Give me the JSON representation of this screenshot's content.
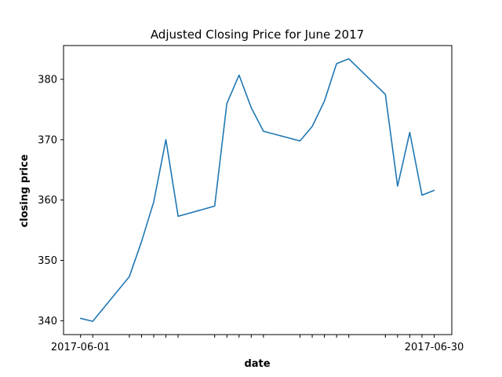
{
  "chart_data": {
    "type": "line",
    "title": "Adjusted Closing Price for June 2017",
    "xlabel": "date",
    "ylabel": "closing price",
    "x": [
      "2017-06-01",
      "2017-06-02",
      "2017-06-05",
      "2017-06-06",
      "2017-06-07",
      "2017-06-08",
      "2017-06-09",
      "2017-06-12",
      "2017-06-13",
      "2017-06-14",
      "2017-06-15",
      "2017-06-16",
      "2017-06-19",
      "2017-06-20",
      "2017-06-21",
      "2017-06-22",
      "2017-06-23",
      "2017-06-26",
      "2017-06-27",
      "2017-06-28",
      "2017-06-29",
      "2017-06-30"
    ],
    "x_tick_labels": [
      "2017-06-01",
      "2017-06-30"
    ],
    "series": [
      {
        "values": [
          340.4,
          339.9,
          347.3,
          353.1,
          359.7,
          370.0,
          357.3,
          359.0,
          376.0,
          380.7,
          375.3,
          371.4,
          369.8,
          372.2,
          376.4,
          382.6,
          383.4,
          377.5,
          362.3,
          371.2,
          360.8,
          361.6
        ],
        "color": "#1f77b4"
      }
    ],
    "y_ticks": [
      340,
      350,
      360,
      370,
      380
    ],
    "ylim": [
      337.7,
      385.6
    ],
    "grid": false
  }
}
